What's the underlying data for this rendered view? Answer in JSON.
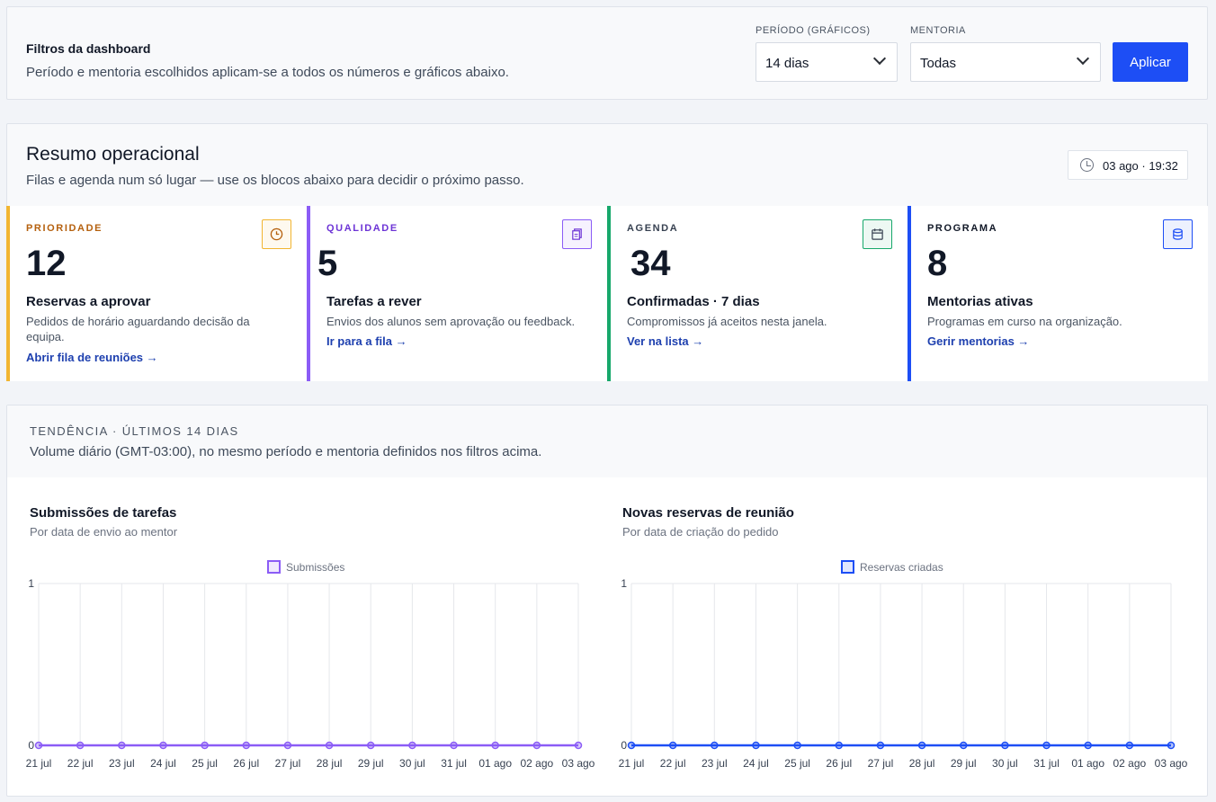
{
  "filters": {
    "title": "Filtros da dashboard",
    "subtitle": "Período e mentoria escolhidos aplicam-se a todos os números e gráficos abaixo.",
    "period_label": "PERÍODO (GRÁFICOS)",
    "period_value": "14 dias",
    "mentoring_label": "MENTORIA",
    "mentoring_value": "Todas",
    "apply_label": "Aplicar"
  },
  "summary": {
    "title": "Resumo operacional",
    "subtitle": "Filas e agenda num só lugar — use os blocos abaixo para decidir o próximo passo.",
    "timestamp": "03 ago · 19:32",
    "kpis": [
      {
        "tag": "PRIORIDADE",
        "value": "12",
        "name": "Reservas a aprovar",
        "desc": "Pedidos de horário aguardando decisão da equipa.",
        "link": "Abrir fila de reuniões →",
        "color": "#f2b531",
        "tag_color": "#b5600e",
        "icon": "clock-icon"
      },
      {
        "tag": "QUALIDADE",
        "value": "5",
        "name": "Tarefas a rever",
        "desc": "Envios dos alunos sem aprovação ou feedback.",
        "link": "Ir para a fila →",
        "color": "#8b5cf6",
        "tag_color": "#6d34d6",
        "icon": "clipboard-icon"
      },
      {
        "tag": "AGENDA",
        "value": "34",
        "name": "Confirmadas · 7 dias",
        "desc": "Compromissos já aceitos nesta janela.",
        "link": "Ver na lista →",
        "color": "#17a86b",
        "tag_color": "#374151",
        "icon": "calendar-icon"
      },
      {
        "tag": "PROGRAMA",
        "value": "8",
        "name": "Mentorias ativas",
        "desc": "Programas em curso na organização.",
        "link": "Gerir mentorias →",
        "color": "#1d4ef5",
        "tag_color": "#111827",
        "icon": "database-icon"
      }
    ]
  },
  "trend": {
    "tag": "TENDÊNCIA · ÚLTIMOS 14 DIAS",
    "subtitle": "Volume diário (GMT-03:00), no mesmo período e mentoria definidos nos filtros acima."
  },
  "chart_data": [
    {
      "type": "line",
      "title": "Submissões de tarefas",
      "subtitle": "Por data de envio ao mentor",
      "x": [
        "21 jul",
        "22 jul",
        "23 jul",
        "24 jul",
        "25 jul",
        "26 jul",
        "27 jul",
        "28 jul",
        "29 jul",
        "30 jul",
        "31 jul",
        "01 ago",
        "02 ago",
        "03 ago"
      ],
      "series": [
        {
          "name": "Submissões",
          "values": [
            0,
            0,
            0,
            0,
            0,
            0,
            0,
            0,
            0,
            0,
            0,
            0,
            0,
            0
          ],
          "color": "#8b5cf6"
        }
      ],
      "ylim": [
        0,
        1
      ],
      "yticks": [
        "0",
        "1"
      ],
      "legend": "top-center",
      "grid": true
    },
    {
      "type": "line",
      "title": "Novas reservas de reunião",
      "subtitle": "Por data de criação do pedido",
      "x": [
        "21 jul",
        "22 jul",
        "23 jul",
        "24 jul",
        "25 jul",
        "26 jul",
        "27 jul",
        "28 jul",
        "29 jul",
        "30 jul",
        "31 jul",
        "01 ago",
        "02 ago",
        "03 ago"
      ],
      "series": [
        {
          "name": "Reservas criadas",
          "values": [
            0,
            0,
            0,
            0,
            0,
            0,
            0,
            0,
            0,
            0,
            0,
            0,
            0,
            0
          ],
          "color": "#1d4ef5"
        }
      ],
      "ylim": [
        0,
        1
      ],
      "yticks": [
        "0",
        "1"
      ],
      "legend": "top-center",
      "grid": true
    }
  ]
}
